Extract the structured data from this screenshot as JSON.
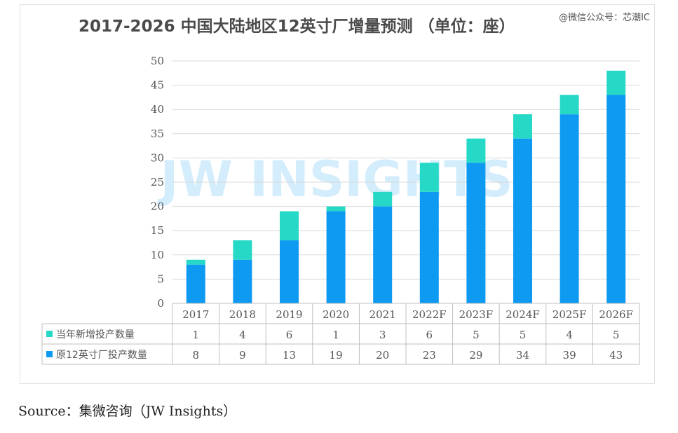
{
  "watermark_top": "@微信公众号：芯潮IC",
  "watermark_center": "JW INSIGHTS",
  "source": "Source：集微咨询（JW Insights）",
  "colors": {
    "new": "#26d8c6",
    "existing": "#0d9af0",
    "grid": "#d9d9d9",
    "text": "#555555"
  },
  "chart_data": {
    "type": "bar",
    "stacked": true,
    "title": "2017-2026 中国大陆地区12英寸厂增量预测 （单位：座）",
    "xlabel": "",
    "ylabel": "",
    "ylim": [
      0,
      50
    ],
    "yticks": [
      0,
      5,
      10,
      15,
      20,
      25,
      30,
      35,
      40,
      45,
      50
    ],
    "grid": true,
    "legend": "table",
    "categories": [
      "2017",
      "2018",
      "2019",
      "2020",
      "2021",
      "2022F",
      "2023F",
      "2024F",
      "2025F",
      "2026F"
    ],
    "series": [
      {
        "name": "原12英寸厂投产数量",
        "values": [
          8,
          9,
          13,
          19,
          20,
          23,
          29,
          34,
          39,
          43
        ]
      },
      {
        "name": "当年新增投产数量",
        "values": [
          1,
          4,
          6,
          1,
          3,
          6,
          5,
          5,
          4,
          5
        ]
      }
    ]
  }
}
